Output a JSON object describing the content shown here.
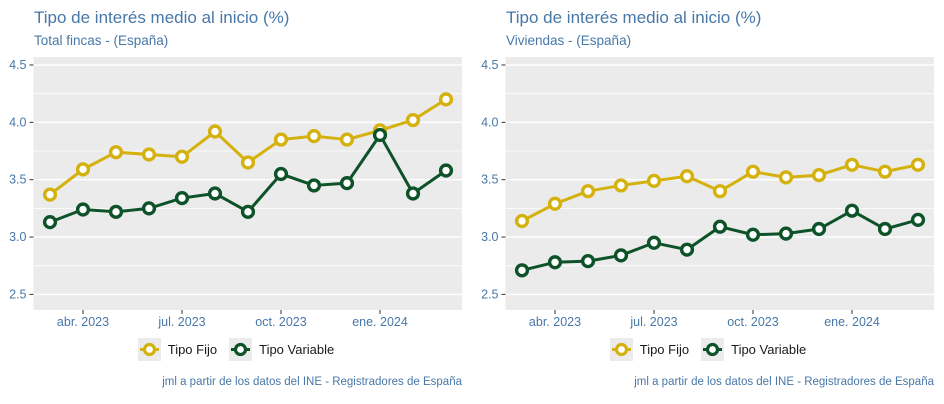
{
  "colors": {
    "title": "#4878a8",
    "axis_labels": "#4878a8",
    "panel": "#ebebeb",
    "grid": "#ffffff",
    "tick_mark": "#333333",
    "legend_text": "#1a1a1a",
    "fijo": "#d5b10e",
    "variable": "#0d5228"
  },
  "chart_data": [
    {
      "type": "line",
      "title": "Tipo de interés medio al inicio (%)",
      "subtitle": "Total fincas - (España)",
      "caption": "jml a partir de los datos del INE - Registradores de España",
      "ylim": [
        2.5,
        4.5
      ],
      "y_ticks": [
        2.5,
        3.0,
        3.5,
        4.0,
        4.5
      ],
      "y_tick_labels": [
        "2.5",
        "3.0",
        "3.5",
        "4.0",
        "4.5"
      ],
      "x_tick_labels": [
        "abr. 2023",
        "jul. 2023",
        "oct. 2023",
        "ene. 2024"
      ],
      "x_tick_positions": [
        1,
        4,
        7,
        10
      ],
      "grid": true,
      "legend_position": "bottom",
      "series": [
        {
          "name": "Tipo Fijo",
          "color": "#d5b10e",
          "values": [
            3.37,
            3.59,
            3.74,
            3.72,
            3.7,
            3.92,
            3.65,
            3.85,
            3.88,
            3.85,
            3.93,
            4.02,
            4.2
          ]
        },
        {
          "name": "Tipo Variable",
          "color": "#0d5228",
          "values": [
            3.13,
            3.24,
            3.22,
            3.25,
            3.34,
            3.38,
            3.22,
            3.55,
            3.45,
            3.47,
            3.89,
            3.38,
            3.58
          ]
        }
      ]
    },
    {
      "type": "line",
      "title": "Tipo de interés medio al inicio (%)",
      "subtitle": "Viviendas - (España)",
      "caption": "jml a partir de los datos del INE - Registradores de España",
      "ylim": [
        2.5,
        4.5
      ],
      "y_ticks": [
        2.5,
        3.0,
        3.5,
        4.0,
        4.5
      ],
      "y_tick_labels": [
        "2.5",
        "3.0",
        "3.5",
        "4.0",
        "4.5"
      ],
      "x_tick_labels": [
        "abr. 2023",
        "jul. 2023",
        "oct. 2023",
        "ene. 2024"
      ],
      "x_tick_positions": [
        1,
        4,
        7,
        10
      ],
      "grid": true,
      "legend_position": "bottom",
      "series": [
        {
          "name": "Tipo Fijo",
          "color": "#d5b10e",
          "values": [
            3.14,
            3.29,
            3.4,
            3.45,
            3.49,
            3.53,
            3.4,
            3.57,
            3.52,
            3.54,
            3.63,
            3.57,
            3.63
          ]
        },
        {
          "name": "Tipo Variable",
          "color": "#0d5228",
          "values": [
            2.71,
            2.78,
            2.79,
            2.84,
            2.95,
            2.89,
            3.09,
            3.02,
            3.03,
            3.07,
            3.23,
            3.07,
            3.15
          ]
        }
      ]
    }
  ]
}
